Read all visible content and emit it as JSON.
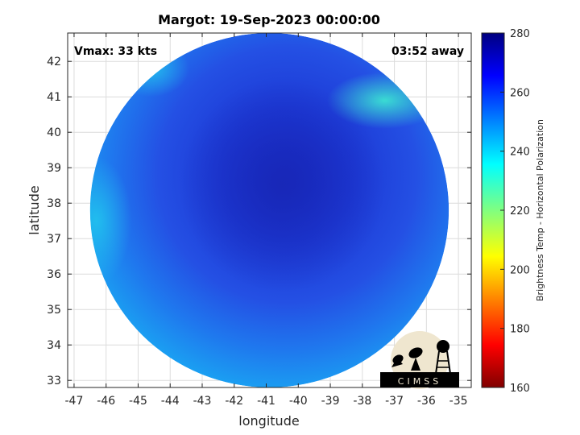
{
  "chart_data": {
    "type": "heatmap",
    "title": "Margot: 19-Sep-2023 00:00:00",
    "xlabel": "longitude",
    "ylabel": "latitude",
    "xlim": [
      -47.2,
      -34.6
    ],
    "ylim": [
      32.8,
      42.8
    ],
    "xticks": [
      -47,
      -46,
      -45,
      -44,
      -43,
      -42,
      -41,
      -40,
      -39,
      -38,
      -37,
      -36,
      -35
    ],
    "yticks": [
      33,
      34,
      35,
      36,
      37,
      38,
      39,
      40,
      41,
      42
    ],
    "grid": true,
    "annotations": {
      "left": "Vmax: 33 kts",
      "right": "03:52 away"
    },
    "colorbar": {
      "label": "Brightness Temp - Horizontal Polarization",
      "range": [
        160,
        280
      ],
      "ticks": [
        160,
        180,
        200,
        220,
        240,
        260,
        280
      ],
      "colormap": "jet"
    },
    "swath_center": [
      -40.9,
      37.8
    ],
    "storm_center": [
      -40.5,
      38.5
    ],
    "logo_text": "CIMSS"
  },
  "colors": {
    "cold_core": "#1a2fcf",
    "mid": "#2255e8",
    "warm_edge": "#1fa8f0",
    "warm_patch": "#3ee0d8"
  }
}
